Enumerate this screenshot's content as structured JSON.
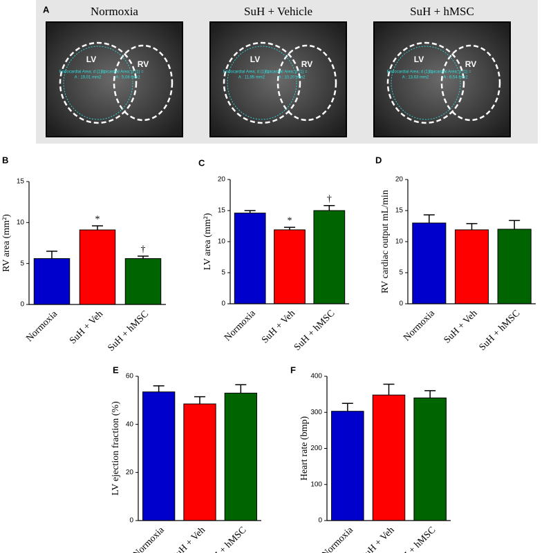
{
  "panel_a": {
    "label": "A",
    "images": [
      {
        "title": "Normoxia",
        "labels": [
          "LV",
          "RV"
        ],
        "notes": [
          "Endocardial Area; d (1) =",
          "A : 19,01 mm2",
          "Epicardial Area; d (1) =",
          "A : 5,08 mm2"
        ]
      },
      {
        "title": "SuH + Vehicle",
        "labels": [
          "LV",
          "RV"
        ],
        "notes": [
          "Endocardial Area; d (1) =",
          "A : 11,95 mm2",
          "Epicardial Area; d (1) =",
          "A : 10,20 mm2"
        ]
      },
      {
        "title": "SuH + hMSC",
        "labels": [
          "LV",
          "RV"
        ],
        "notes": [
          "Endocardial Area; d (1) =",
          "A : 13,63 mm2",
          "Epicardial Area; d (1) =",
          "A : 6,54 mm2"
        ]
      }
    ]
  },
  "chart_data": [
    {
      "type": "bar",
      "panel_label": "B",
      "y_label": "RV area (mm²)",
      "categories": [
        "Normoxia",
        "SuH + Veh",
        "SuH + hMSC"
      ],
      "values": [
        5.6,
        9.1,
        5.6
      ],
      "errors": [
        0.9,
        0.5,
        0.3
      ],
      "colors": [
        "#0000cc",
        "#ff0000",
        "#006400"
      ],
      "annotations": [
        null,
        "*",
        "†"
      ],
      "ylim": [
        0,
        15
      ],
      "yticks": [
        0,
        5,
        10,
        15
      ]
    },
    {
      "type": "bar",
      "panel_label": "C",
      "y_label": "LV area (mm²)",
      "categories": [
        "Normoxia",
        "SuH + Veh",
        "SuH + hMSC"
      ],
      "values": [
        14.6,
        11.9,
        15.0
      ],
      "errors": [
        0.4,
        0.4,
        0.8
      ],
      "colors": [
        "#0000cc",
        "#ff0000",
        "#006400"
      ],
      "annotations": [
        null,
        "*",
        "†"
      ],
      "ylim": [
        0,
        20
      ],
      "yticks": [
        0,
        5,
        10,
        15,
        20
      ]
    },
    {
      "type": "bar",
      "panel_label": "D",
      "y_label": "RV cardiac output mL/min",
      "categories": [
        "Normoxia",
        "SuH + Veh",
        "SuH + hMSC"
      ],
      "values": [
        13.0,
        11.9,
        12.0
      ],
      "errors": [
        1.3,
        1.0,
        1.4
      ],
      "colors": [
        "#0000cc",
        "#ff0000",
        "#006400"
      ],
      "ylim": [
        0,
        20
      ],
      "yticks": [
        0,
        5,
        10,
        15,
        20
      ]
    },
    {
      "type": "bar",
      "panel_label": "E",
      "y_label": "LV ejection fraction (%)",
      "categories": [
        "Normoxia",
        "SuH + Veh",
        "SuH + hMSC"
      ],
      "values": [
        53.5,
        48.5,
        53.0
      ],
      "errors": [
        2.5,
        3.0,
        3.5
      ],
      "colors": [
        "#0000cc",
        "#ff0000",
        "#006400"
      ],
      "ylim": [
        0,
        60
      ],
      "yticks": [
        0,
        20,
        40,
        60
      ]
    },
    {
      "type": "bar",
      "panel_label": "F",
      "y_label": "Heart rate (bmp)",
      "categories": [
        "Normoxia",
        "SuH + Veh",
        "SuH + hMSC"
      ],
      "values": [
        303,
        348,
        340
      ],
      "errors": [
        22,
        30,
        20
      ],
      "colors": [
        "#0000cc",
        "#ff0000",
        "#006400"
      ],
      "ylim": [
        0,
        400
      ],
      "yticks": [
        0,
        100,
        200,
        300,
        400
      ]
    }
  ]
}
